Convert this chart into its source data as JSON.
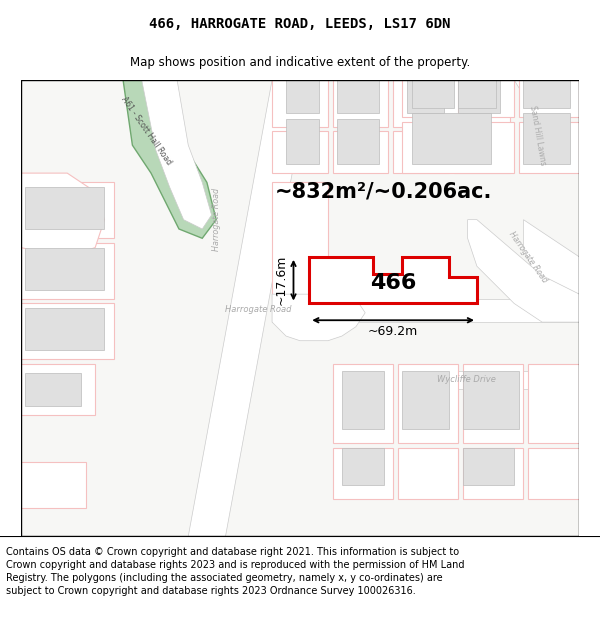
{
  "title": "466, HARROGATE ROAD, LEEDS, LS17 6DN",
  "subtitle": "Map shows position and indicative extent of the property.",
  "area_label": "~832m²/~0.206ac.",
  "property_number": "466",
  "width_label": "~69.2m",
  "height_label": "~17.6m",
  "footer_text": "Contains OS data © Crown copyright and database right 2021. This information is subject to Crown copyright and database rights 2023 and is reproduced with the permission of HM Land Registry. The polygons (including the associated geometry, namely x, y co-ordinates) are subject to Crown copyright and database rights 2023 Ordnance Survey 100026316.",
  "map_bg": "#f7f7f5",
  "highlight_color": "#dd0000",
  "light_red": "#f5c0c0",
  "road_color": "#e0e0e0",
  "title_fontsize": 10,
  "subtitle_fontsize": 8.5,
  "footer_fontsize": 7.0
}
